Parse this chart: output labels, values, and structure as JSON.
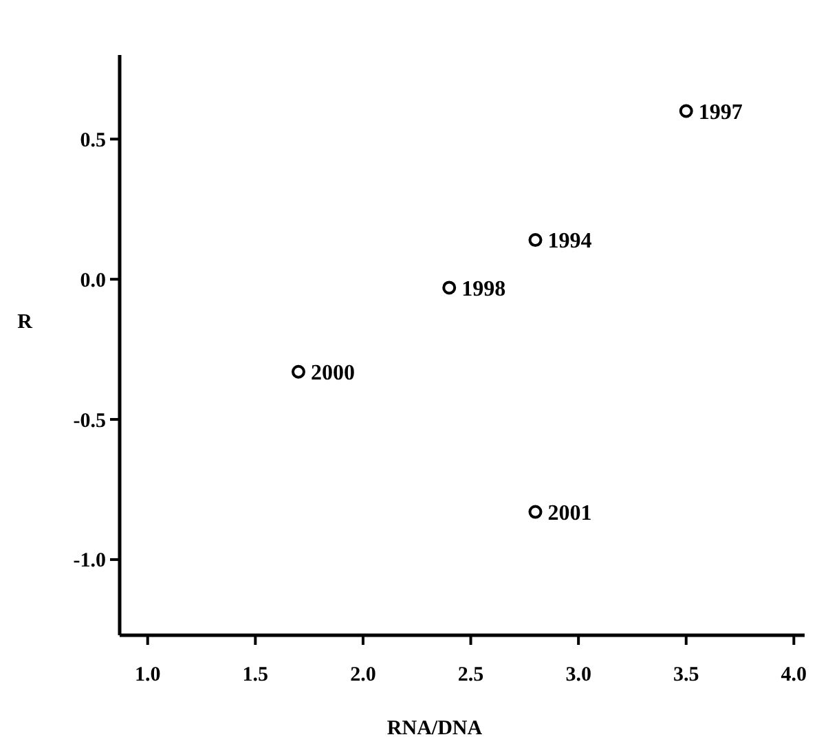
{
  "chart_data": {
    "type": "scatter",
    "xlabel": "RNA/DNA",
    "ylabel": "R",
    "x": [
      2.8,
      3.5,
      2.4,
      1.7,
      2.8
    ],
    "values": [
      0.14,
      0.6,
      -0.03,
      -0.33,
      -0.83
    ],
    "color": "#000000",
    "marker": "circle",
    "annotations": [
      {
        "text": "1994",
        "x": 2.8,
        "y": 0.14
      },
      {
        "text": "1997",
        "x": 3.5,
        "y": 0.6
      },
      {
        "text": "1998",
        "x": 2.4,
        "y": -0.03
      },
      {
        "text": "2000",
        "x": 1.7,
        "y": -0.33
      },
      {
        "text": "2001",
        "x": 2.8,
        "y": -0.83
      }
    ],
    "xlim": [
      0.87,
      4.05
    ],
    "xticks": [
      {
        "value": 1,
        "label": "1.0"
      },
      1.5,
      {
        "value": 2,
        "label": "2.0"
      },
      2.5,
      {
        "value": 3,
        "label": "3.0"
      },
      3.5,
      {
        "value": 4,
        "label": "4.0"
      }
    ],
    "ylim": [
      -1.27,
      0.8
    ],
    "yticks": [
      0.5,
      {
        "value": 0,
        "label": "0.0"
      },
      -0.5,
      {
        "value": -1,
        "label": "-1.0"
      }
    ],
    "tick_labels": true
  }
}
